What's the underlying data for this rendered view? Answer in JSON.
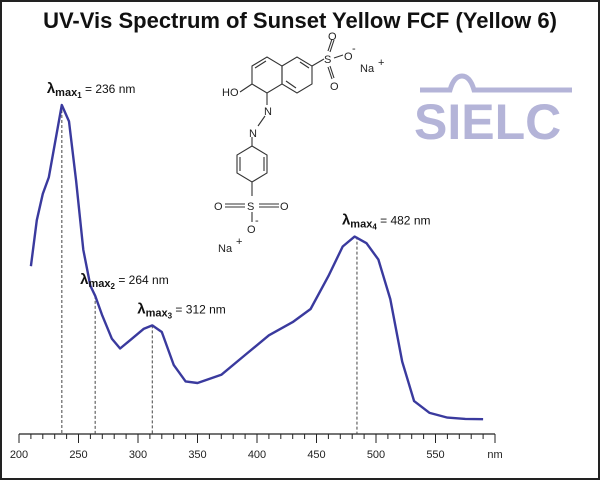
{
  "chart_data": {
    "type": "line",
    "title": "UV-Vis Spectrum of Sunset Yellow FCF (Yellow 6)",
    "xlabel": "nm",
    "ylabel": "",
    "xlim": [
      200,
      600
    ],
    "ylim": [
      0,
      1.05
    ],
    "xticks": [
      200,
      250,
      300,
      350,
      400,
      450,
      500,
      550
    ],
    "x_unit_label": "nm",
    "grid": false,
    "line_color": "#3a3a9e",
    "series": [
      {
        "x": [
          210,
          215,
          220,
          225,
          230,
          236,
          242,
          248,
          254,
          260,
          264,
          270,
          278,
          285,
          295,
          305,
          312,
          320,
          330,
          340,
          350,
          370,
          390,
          410,
          430,
          445,
          460,
          472,
          482,
          492,
          502,
          512,
          522,
          532,
          545,
          560,
          575,
          590
        ],
        "y": [
          0.51,
          0.65,
          0.73,
          0.78,
          0.88,
          1.0,
          0.95,
          0.77,
          0.56,
          0.45,
          0.42,
          0.36,
          0.29,
          0.26,
          0.29,
          0.32,
          0.33,
          0.31,
          0.21,
          0.16,
          0.155,
          0.18,
          0.24,
          0.3,
          0.34,
          0.38,
          0.48,
          0.57,
          0.6,
          0.58,
          0.53,
          0.41,
          0.22,
          0.1,
          0.064,
          0.05,
          0.046,
          0.045
        ]
      }
    ],
    "annotations": [
      {
        "label": "λ",
        "sub": "max",
        "index": "1",
        "text": " = 236 nm",
        "x": 236,
        "y": 1.0
      },
      {
        "label": "λ",
        "sub": "max",
        "index": "2",
        "text": " = 264 nm",
        "x": 264,
        "y": 0.42
      },
      {
        "label": "λ",
        "sub": "max",
        "index": "3",
        "text": " = 312 nm",
        "x": 312,
        "y": 0.33
      },
      {
        "label": "λ",
        "sub": "max",
        "index": "4",
        "text": " = 482 nm",
        "x": 484,
        "y": 0.6
      }
    ]
  },
  "logo": {
    "text": "SIELC",
    "color": "#b4b4d8"
  },
  "structure": {
    "labels": {
      "ho": "HO",
      "n1": "N",
      "n2": "N",
      "s1": "S",
      "s2": "S",
      "o": "O",
      "o_minus": "O",
      "minus": "-",
      "na": "Na",
      "plus": "+"
    }
  }
}
